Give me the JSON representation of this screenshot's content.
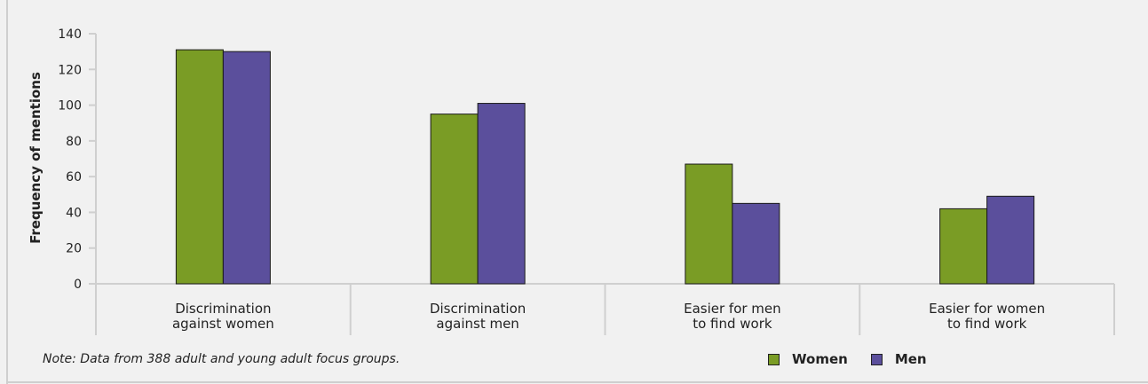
{
  "chart_data": {
    "type": "bar",
    "title": "",
    "xlabel": "",
    "ylabel": "Frequency of mentions",
    "ylim": [
      0,
      140
    ],
    "yticks": [
      0,
      20,
      40,
      60,
      80,
      100,
      120,
      140
    ],
    "grid": false,
    "legend_position": "bottom-right",
    "categories": [
      [
        "Discrimination",
        "against women"
      ],
      [
        "Discrimination",
        "against men"
      ],
      [
        "Easier for men",
        "to find work"
      ],
      [
        "Easier for women",
        "to find work"
      ]
    ],
    "series": [
      {
        "name": "Women",
        "color": "#7a9c25",
        "values": [
          131,
          95,
          67,
          42
        ]
      },
      {
        "name": "Men",
        "color": "#5b4f9c",
        "values": [
          130,
          101,
          45,
          49
        ]
      }
    ],
    "note": "Note: Data from 388 adult and young adult focus groups."
  }
}
